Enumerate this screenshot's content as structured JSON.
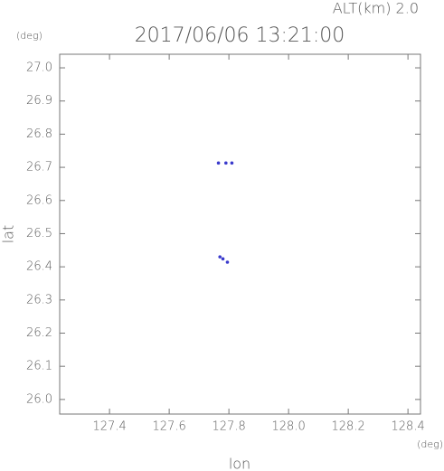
{
  "chart_data": {
    "type": "scatter",
    "title": "2017/06/06 13:21:00",
    "annotation": "ALT(km) 2.0",
    "y_unit": "(deg)",
    "x_unit": "(deg)",
    "xlabel": "lon",
    "ylabel": "lat",
    "x": [
      127.765,
      127.79,
      127.81,
      127.77,
      127.78,
      127.795
    ],
    "values": [
      26.713,
      26.713,
      26.713,
      26.43,
      26.424,
      26.414
    ],
    "color": "#3a3acc",
    "xlim": [
      127.233,
      128.442
    ],
    "ylim": [
      25.956,
      27.041
    ],
    "xticks": [
      127.4,
      127.6,
      127.8,
      {
        "value": 128.0,
        "label": "128.0"
      },
      128.2,
      128.4
    ],
    "yticks": [
      {
        "value": 26.0,
        "label": "26.0"
      },
      26.1,
      26.2,
      26.3,
      26.4,
      26.5,
      26.6,
      26.7,
      26.8,
      26.9,
      {
        "value": 27.0,
        "label": "27.0"
      }
    ]
  }
}
